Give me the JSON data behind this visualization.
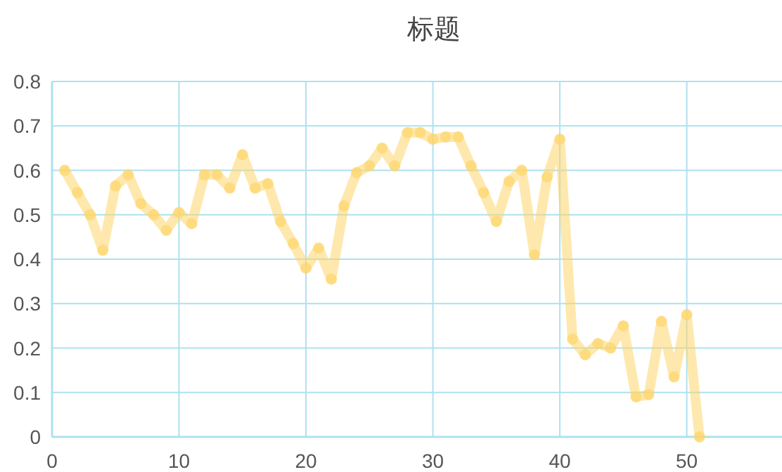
{
  "chart_data": {
    "type": "line",
    "title": "标题",
    "x": [
      1,
      2,
      3,
      4,
      5,
      6,
      7,
      8,
      9,
      10,
      11,
      12,
      13,
      14,
      15,
      16,
      17,
      18,
      19,
      20,
      21,
      22,
      23,
      24,
      25,
      26,
      27,
      28,
      29,
      30,
      31,
      32,
      33,
      34,
      35,
      36,
      37,
      38,
      39,
      40,
      41,
      42,
      43,
      44,
      45,
      46,
      47,
      48,
      49,
      50,
      51
    ],
    "series": [
      {
        "color": "#fdd56a",
        "values": [
          0.6,
          0.55,
          0.5,
          0.42,
          0.565,
          0.59,
          0.525,
          0.5,
          0.465,
          0.505,
          0.48,
          0.59,
          0.59,
          0.56,
          0.635,
          0.56,
          0.57,
          0.485,
          0.435,
          0.38,
          0.425,
          0.355,
          0.52,
          0.595,
          0.61,
          0.65,
          0.61,
          0.685,
          0.685,
          0.67,
          0.675,
          0.675,
          0.61,
          0.55,
          0.485,
          0.575,
          0.6,
          0.41,
          0.585,
          0.67,
          0.22,
          0.185,
          0.21,
          0.2,
          0.25,
          0.09,
          0.095,
          0.26,
          0.135,
          0.275,
          0
        ]
      }
    ],
    "xlim": [
      0,
      57.5
    ],
    "ylim": [
      0,
      0.8
    ],
    "xticks": [
      0,
      10,
      20,
      30,
      40,
      50
    ],
    "yticks": [
      0,
      0.1,
      0.2,
      0.3,
      0.4,
      0.5,
      0.6,
      0.7,
      0.8
    ],
    "grid": true,
    "marker": "circle",
    "line_style": "solid"
  }
}
